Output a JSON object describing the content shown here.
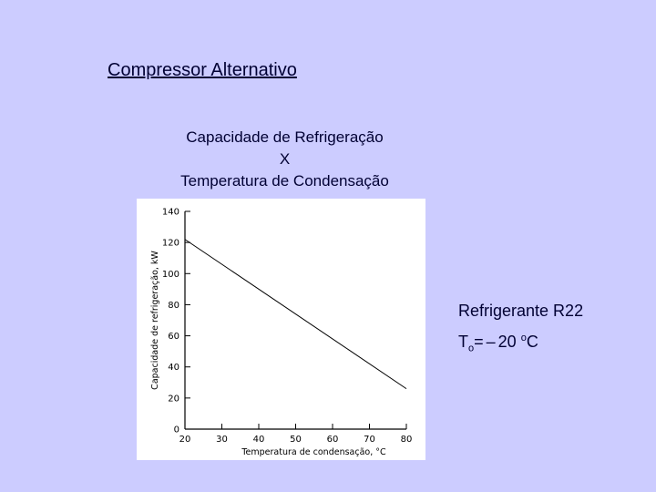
{
  "slide": {
    "heading": "Compressor Alternativo",
    "subtitle_line1": "Capacidade de Refrigeração",
    "subtitle_line2": "X",
    "subtitle_line3": "Temperatura de Condensação",
    "refrigerant": "Refrigerante R22",
    "evap_symbol": "T",
    "evap_subscript": "o",
    "evap_equals": "=",
    "evap_dash": "–",
    "evap_value": "20",
    "evap_degree": "o",
    "evap_unit": "C"
  },
  "colors": {
    "background": "#ccccff",
    "text": "#000033",
    "plot_line": "#000000"
  },
  "chart_data": {
    "type": "line",
    "title": "",
    "xlabel": "Temperatura de condensação, °C",
    "ylabel": "Capacidade de refrigeração, kW",
    "xlim": [
      20,
      80
    ],
    "ylim": [
      0,
      140
    ],
    "xticks": [
      "20",
      "30",
      "40",
      "50",
      "60",
      "70",
      "80"
    ],
    "yticks": [
      "0",
      "20",
      "40",
      "60",
      "80",
      "100",
      "120",
      "140"
    ],
    "x": [
      20,
      80
    ],
    "y": [
      122,
      26
    ],
    "grid": false
  }
}
